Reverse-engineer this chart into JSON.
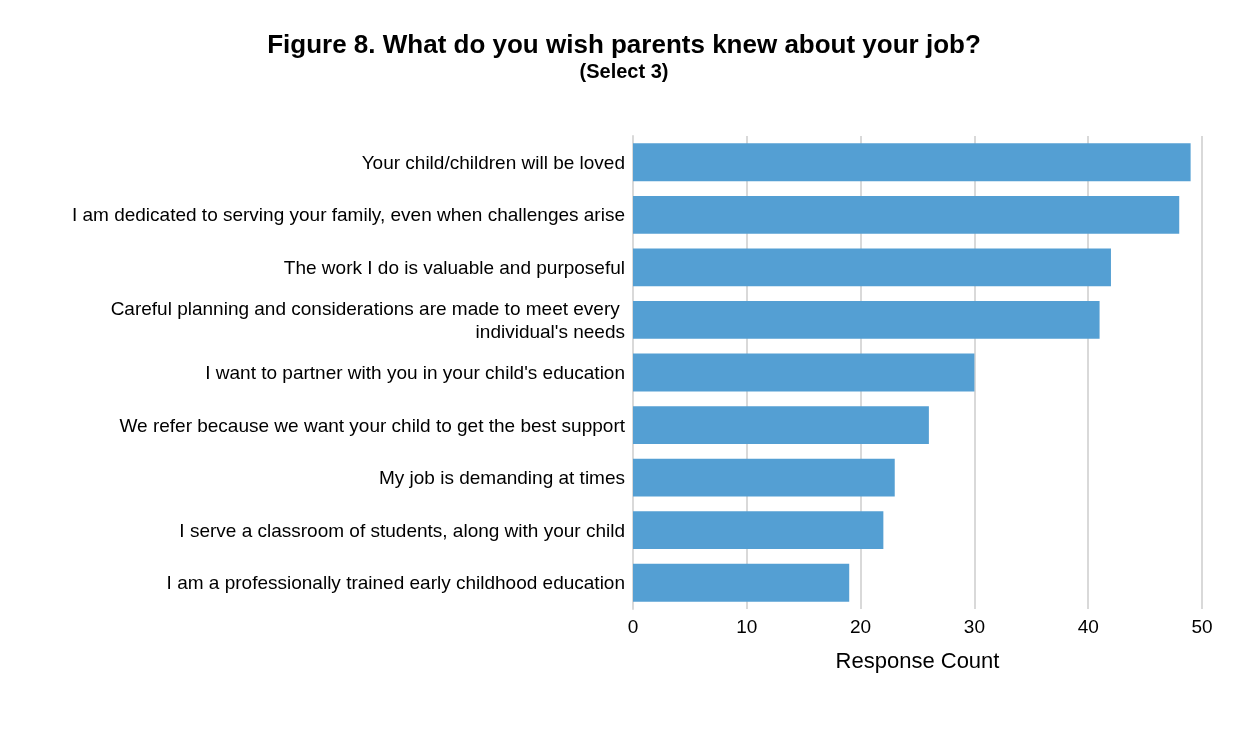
{
  "chart_data": {
    "type": "bar",
    "orientation": "horizontal",
    "title": "Figure 8. What do you wish parents knew about your job?",
    "subtitle": "(Select 3)",
    "xlabel": "Response Count",
    "categories": [
      "Your child/children will be loved",
      "I am dedicated to serving your family, even when challenges arise",
      "The work I do is valuable and purposeful",
      "Careful planning and considerations are made to meet every individual's needs",
      "I want to partner with you in your child's education",
      "We refer because we want your child to get the best support",
      "My job is demanding at times",
      "I serve a classroom of students, along with your child",
      "I am a professionally trained early childhood education"
    ],
    "values": [
      49,
      48,
      42,
      41,
      30,
      26,
      23,
      22,
      19
    ],
    "color": "#549fd3",
    "xlim": [
      0,
      50
    ],
    "xticks": [
      0,
      10,
      20,
      30,
      40,
      50
    ],
    "grid": "x"
  }
}
